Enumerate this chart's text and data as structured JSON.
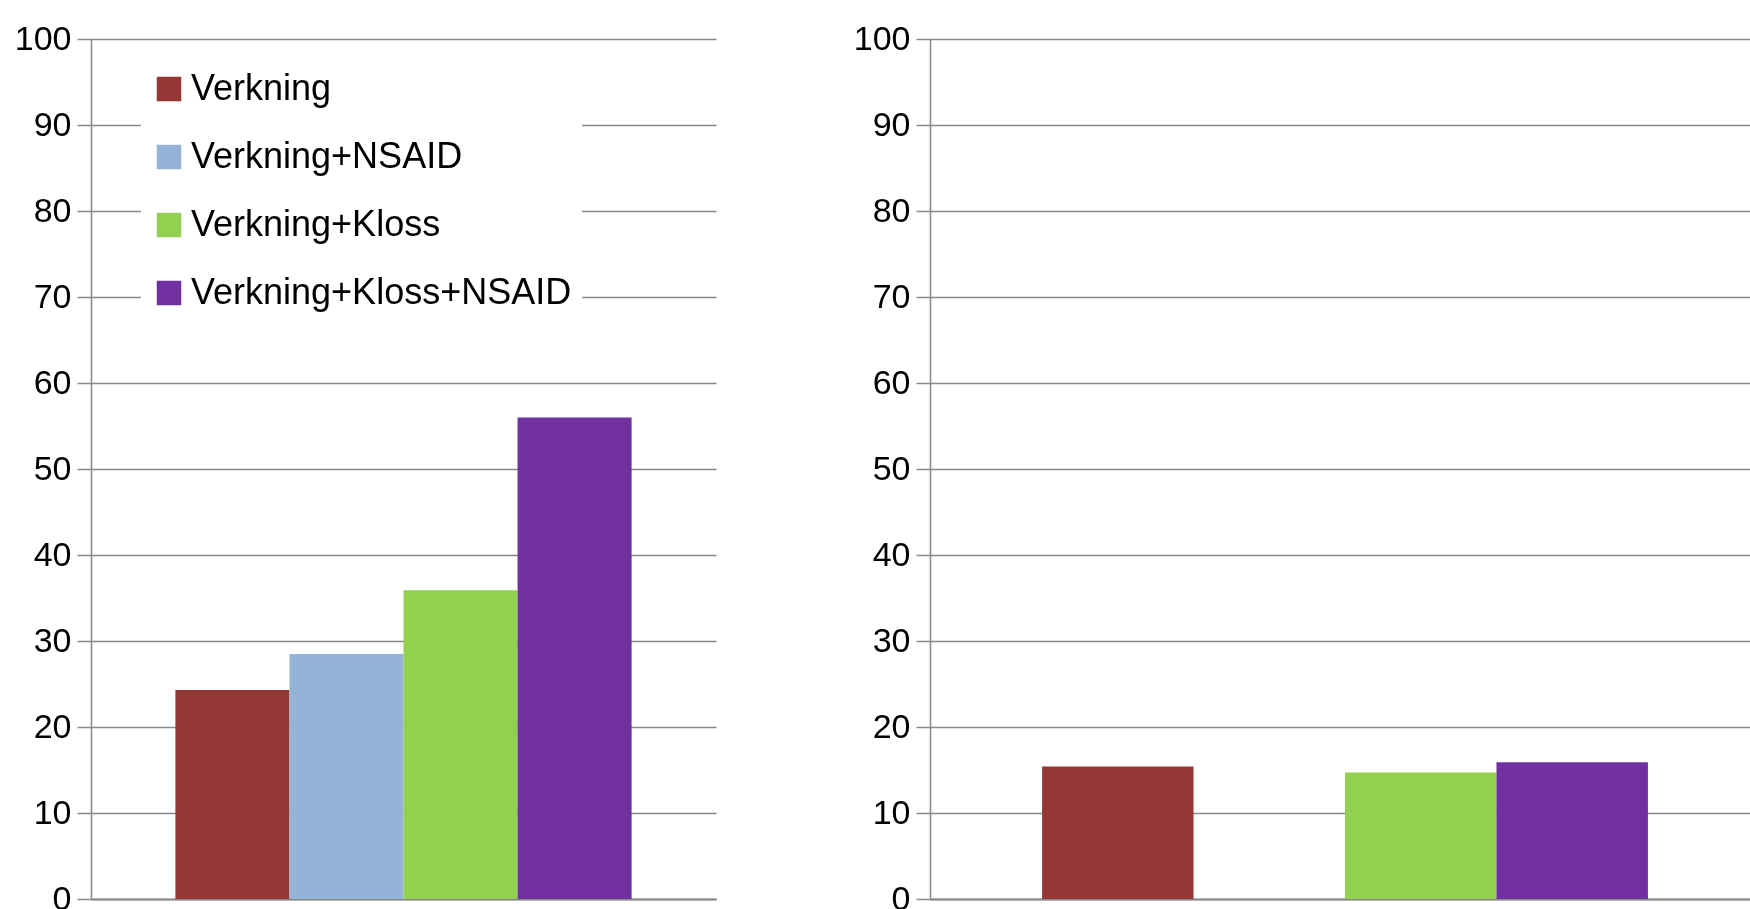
{
  "chart_data": [
    {
      "type": "bar",
      "categories": [
        null
      ],
      "series": [
        {
          "name": "Verkning",
          "color": "#953735",
          "values": [
            24.3
          ]
        },
        {
          "name": "Verkning+NSAID",
          "color": "#95b3d7",
          "values": [
            28.5
          ]
        },
        {
          "name": "Verkning+Kloss",
          "color": "#92d050",
          "values": [
            35.9
          ]
        },
        {
          "name": "Verkning+Kloss+NSAID",
          "color": "#7030a0",
          "values": [
            56
          ]
        }
      ],
      "ylim": [
        0,
        100
      ],
      "yticks": [
        0,
        10,
        20,
        30,
        40,
        50,
        60,
        70,
        80,
        90,
        100
      ],
      "grid": "y",
      "legend": "top left"
    },
    {
      "type": "bar",
      "categories": [
        null
      ],
      "series": [
        {
          "color": "#953735",
          "values": [
            15.4
          ]
        },
        {
          "color": "#95b3d7",
          "values": [
            null
          ]
        },
        {
          "color": "#92d050",
          "values": [
            14.7
          ]
        },
        {
          "color": "#7030a0",
          "values": [
            15.9
          ]
        }
      ],
      "ylim": [
        0,
        100
      ],
      "yticks": [
        0,
        10,
        20,
        30,
        40,
        50,
        60,
        70,
        80,
        90,
        100
      ],
      "grid": "y"
    }
  ]
}
